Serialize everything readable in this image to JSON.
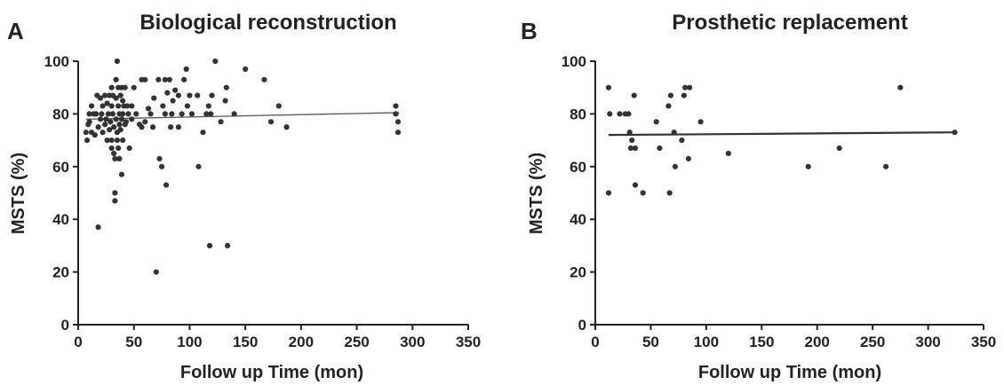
{
  "figure": {
    "panels": [
      {
        "letter": "A",
        "title": "Biological reconstruction"
      },
      {
        "letter": "B",
        "title": "Prosthetic replacement"
      }
    ]
  },
  "chart_data": [
    {
      "type": "scatter",
      "panel": "A",
      "title": "Biological reconstruction",
      "xlabel": "Follow up Time (mon)",
      "ylabel": "MSTS (%)",
      "xlim": [
        0,
        350
      ],
      "ylim": [
        0,
        100
      ],
      "xticks": [
        "0",
        "50",
        "100",
        "150",
        "200",
        "250",
        "300",
        "350"
      ],
      "yticks": [
        "0",
        "20",
        "40",
        "60",
        "80",
        "100"
      ],
      "grid": false,
      "marker_color": "#333333",
      "line_color": "#555555",
      "trend_line": {
        "x": [
          7,
          288
        ],
        "y": [
          78,
          80.5
        ]
      },
      "points": [
        [
          7,
          73
        ],
        [
          8,
          70
        ],
        [
          9,
          76
        ],
        [
          10,
          80
        ],
        [
          10,
          77
        ],
        [
          12,
          83
        ],
        [
          12,
          73
        ],
        [
          14,
          80
        ],
        [
          15,
          72
        ],
        [
          16,
          80
        ],
        [
          17,
          87
        ],
        [
          18,
          37
        ],
        [
          18,
          75
        ],
        [
          20,
          78
        ],
        [
          20,
          86
        ],
        [
          21,
          80
        ],
        [
          22,
          83
        ],
        [
          22,
          73
        ],
        [
          24,
          87
        ],
        [
          24,
          76
        ],
        [
          25,
          78
        ],
        [
          26,
          84
        ],
        [
          26,
          70
        ],
        [
          27,
          80
        ],
        [
          28,
          87
        ],
        [
          28,
          74
        ],
        [
          29,
          77
        ],
        [
          30,
          83
        ],
        [
          30,
          90
        ],
        [
          30,
          70
        ],
        [
          30,
          67
        ],
        [
          31,
          87
        ],
        [
          31,
          80
        ],
        [
          32,
          75
        ],
        [
          32,
          65
        ],
        [
          33,
          50
        ],
        [
          33,
          47
        ],
        [
          33,
          63
        ],
        [
          34,
          93
        ],
        [
          34,
          86
        ],
        [
          34,
          78
        ],
        [
          35,
          100
        ],
        [
          35,
          73
        ],
        [
          35,
          70
        ],
        [
          36,
          90
        ],
        [
          36,
          83
        ],
        [
          36,
          67
        ],
        [
          37,
          80
        ],
        [
          37,
          76
        ],
        [
          37,
          63
        ],
        [
          38,
          87
        ],
        [
          38,
          74
        ],
        [
          39,
          90
        ],
        [
          39,
          78
        ],
        [
          39,
          57
        ],
        [
          40,
          80
        ],
        [
          40,
          85
        ],
        [
          40,
          70
        ],
        [
          41,
          83
        ],
        [
          42,
          90
        ],
        [
          42,
          76
        ],
        [
          43,
          77
        ],
        [
          44,
          83
        ],
        [
          45,
          80
        ],
        [
          46,
          67
        ],
        [
          48,
          83
        ],
        [
          48,
          78
        ],
        [
          50,
          90
        ],
        [
          52,
          80
        ],
        [
          55,
          76
        ],
        [
          57,
          93
        ],
        [
          57,
          75
        ],
        [
          60,
          93
        ],
        [
          60,
          77
        ],
        [
          63,
          82
        ],
        [
          65,
          80
        ],
        [
          67,
          75
        ],
        [
          68,
          86
        ],
        [
          70,
          20
        ],
        [
          72,
          93
        ],
        [
          73,
          63
        ],
        [
          75,
          60
        ],
        [
          76,
          83
        ],
        [
          78,
          93
        ],
        [
          78,
          80
        ],
        [
          79,
          53
        ],
        [
          80,
          88
        ],
        [
          82,
          93
        ],
        [
          83,
          75
        ],
        [
          84,
          80
        ],
        [
          85,
          85
        ],
        [
          87,
          89
        ],
        [
          90,
          87
        ],
        [
          90,
          75
        ],
        [
          93,
          80
        ],
        [
          95,
          93
        ],
        [
          97,
          97
        ],
        [
          98,
          83
        ],
        [
          100,
          87
        ],
        [
          102,
          80
        ],
        [
          107,
          87
        ],
        [
          108,
          60
        ],
        [
          112,
          73
        ],
        [
          115,
          80
        ],
        [
          117,
          83
        ],
        [
          118,
          30
        ],
        [
          119,
          80
        ],
        [
          120,
          87
        ],
        [
          123,
          100
        ],
        [
          128,
          77
        ],
        [
          132,
          85
        ],
        [
          133,
          90
        ],
        [
          134,
          30
        ],
        [
          140,
          80
        ],
        [
          150,
          97
        ],
        [
          167,
          93
        ],
        [
          173,
          77
        ],
        [
          180,
          83
        ],
        [
          187,
          75
        ],
        [
          285,
          83
        ],
        [
          285,
          80
        ],
        [
          287,
          77
        ],
        [
          287,
          73
        ]
      ]
    },
    {
      "type": "scatter",
      "panel": "B",
      "title": "Prosthetic replacement",
      "xlabel": "Follow up Time (mon)",
      "ylabel": "MSTS (%)",
      "xlim": [
        0,
        350
      ],
      "ylim": [
        0,
        100
      ],
      "xticks": [
        "0",
        "50",
        "100",
        "150",
        "200",
        "250",
        "300",
        "350"
      ],
      "yticks": [
        "0",
        "20",
        "40",
        "60",
        "80",
        "100"
      ],
      "grid": false,
      "marker_color": "#333333",
      "line_color": "#333333",
      "trend_line": {
        "x": [
          12,
          324
        ],
        "y": [
          72,
          73
        ]
      },
      "points": [
        [
          12,
          90
        ],
        [
          12,
          50
        ],
        [
          13,
          80
        ],
        [
          22,
          80
        ],
        [
          27,
          80
        ],
        [
          30,
          80
        ],
        [
          31,
          73
        ],
        [
          32,
          67
        ],
        [
          33,
          70
        ],
        [
          35,
          87
        ],
        [
          36,
          67
        ],
        [
          36,
          53
        ],
        [
          43,
          50
        ],
        [
          55,
          77
        ],
        [
          58,
          67
        ],
        [
          66,
          83
        ],
        [
          67,
          50
        ],
        [
          68,
          87
        ],
        [
          71,
          73
        ],
        [
          72,
          60
        ],
        [
          78,
          70
        ],
        [
          80,
          87
        ],
        [
          81,
          90
        ],
        [
          84,
          63
        ],
        [
          85,
          90
        ],
        [
          95,
          77
        ],
        [
          120,
          65
        ],
        [
          192,
          60
        ],
        [
          220,
          67
        ],
        [
          262,
          60
        ],
        [
          275,
          90
        ],
        [
          324,
          73
        ]
      ]
    }
  ]
}
